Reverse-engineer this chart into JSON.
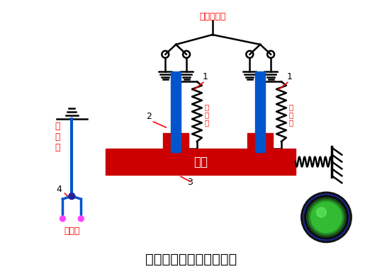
{
  "title": "热继电器工作原理示意图",
  "title_fontsize": 14,
  "bg_color": "#ffffff",
  "label_top": "接电机定子",
  "label_left": "接\n电\n源",
  "label_motor": "接电机",
  "label_guide": "导板",
  "label_heat1": "热\n元\n件",
  "label_heat2": "热\n元\n件",
  "num1a": "1",
  "num1b": "1",
  "num2": "2",
  "num3": "3",
  "num4": "4",
  "red": "#ff0000",
  "blue": "#0000ff",
  "dark_blue": "#000080",
  "magenta": "#ff00ff",
  "black": "#000000",
  "guide_color": "#cc0000",
  "conductor_color": "#0055cc"
}
